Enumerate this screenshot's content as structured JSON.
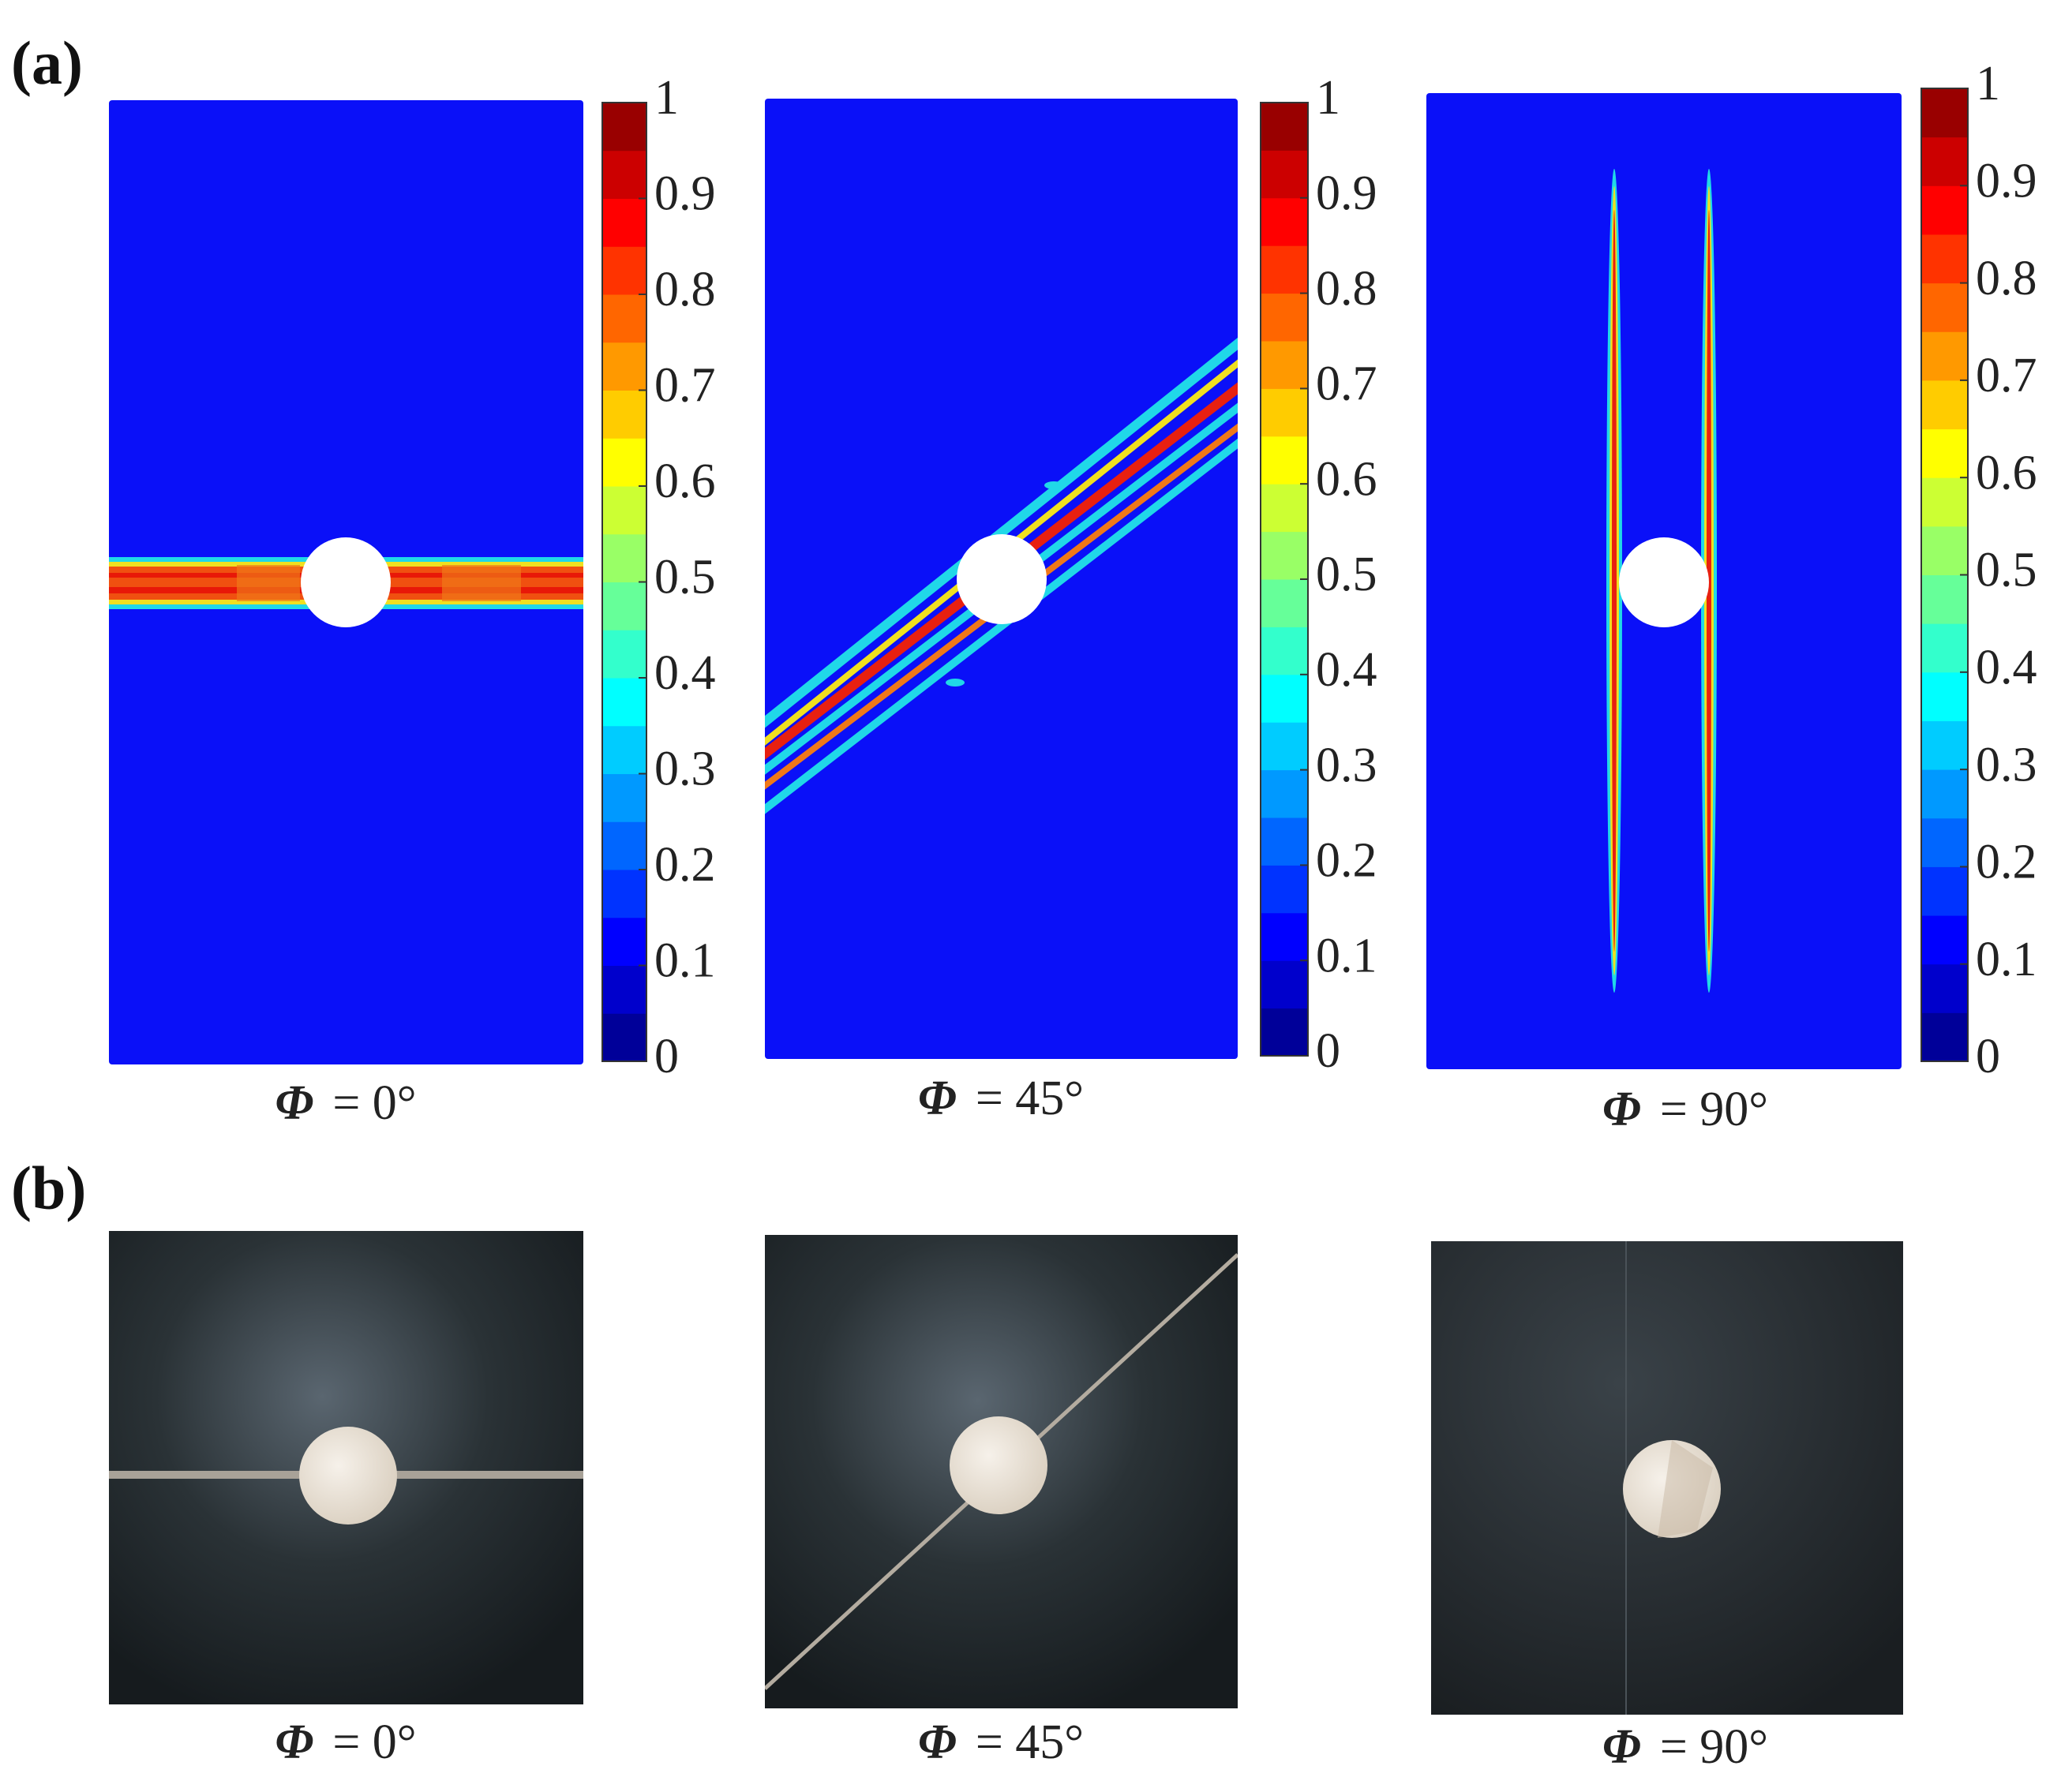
{
  "figure": {
    "panel_labels": [
      "(a)",
      "(b)"
    ],
    "symbol": "Φ",
    "angles": [
      "= 0°",
      "= 45°",
      "= 90°"
    ],
    "colorbar": {
      "ticks": [
        0,
        0.1,
        0.2,
        0.3,
        0.4,
        0.5,
        0.6,
        0.7,
        0.8,
        0.9,
        1
      ]
    }
  }
}
